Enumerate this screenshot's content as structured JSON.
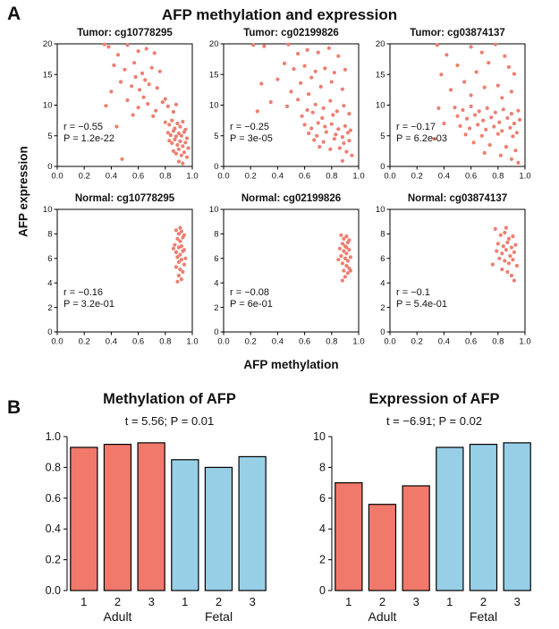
{
  "figure": {
    "panel_a_label": "A",
    "panel_b_label": "B",
    "title": "AFP methylation and expression",
    "y_axis_label": "AFP expression",
    "x_axis_label": "AFP methylation"
  },
  "colors": {
    "point": "#ee7e6f",
    "adult_bar": "#f0796c",
    "fetal_bar": "#97cfe6"
  },
  "chart_data": [
    {
      "id": "tumor_cg10778295",
      "type": "scatter",
      "title": "Tumor: cg10778295",
      "xlim": [
        0,
        1
      ],
      "ylim": [
        0,
        20
      ],
      "xticks": [
        0,
        0.2,
        0.4,
        0.6,
        0.8,
        1.0
      ],
      "yticks": [
        0,
        5,
        10,
        15,
        20
      ],
      "annotation": [
        "r = −0.55",
        "P = 1.2e-22"
      ],
      "points": [
        [
          0.38,
          19.5
        ],
        [
          0.45,
          18.2
        ],
        [
          0.52,
          19.8
        ],
        [
          0.6,
          18.8
        ],
        [
          0.66,
          19.2
        ],
        [
          0.72,
          18.5
        ],
        [
          0.42,
          16.5
        ],
        [
          0.5,
          15.8
        ],
        [
          0.57,
          16.9
        ],
        [
          0.63,
          15.2
        ],
        [
          0.7,
          16.1
        ],
        [
          0.76,
          15.5
        ],
        [
          0.47,
          13.8
        ],
        [
          0.55,
          13.1
        ],
        [
          0.61,
          12.5
        ],
        [
          0.68,
          13.4
        ],
        [
          0.74,
          12.8
        ],
        [
          0.4,
          12.2
        ],
        [
          0.58,
          14.6
        ],
        [
          0.65,
          14.1
        ],
        [
          0.52,
          10.8
        ],
        [
          0.6,
          9.6
        ],
        [
          0.67,
          10.2
        ],
        [
          0.73,
          9.1
        ],
        [
          0.78,
          10.5
        ],
        [
          0.82,
          9.8
        ],
        [
          0.86,
          8.9
        ],
        [
          0.56,
          8.4
        ],
        [
          0.64,
          11.3
        ],
        [
          0.71,
          8.2
        ],
        [
          0.8,
          11.0
        ],
        [
          0.88,
          10.1
        ],
        [
          0.8,
          7.2
        ],
        [
          0.83,
          6.8
        ],
        [
          0.85,
          7.5
        ],
        [
          0.87,
          6.2
        ],
        [
          0.89,
          7.0
        ],
        [
          0.91,
          6.5
        ],
        [
          0.93,
          7.3
        ],
        [
          0.95,
          6.0
        ],
        [
          0.82,
          5.5
        ],
        [
          0.84,
          5.1
        ],
        [
          0.86,
          5.8
        ],
        [
          0.88,
          4.9
        ],
        [
          0.9,
          5.4
        ],
        [
          0.92,
          5.0
        ],
        [
          0.94,
          5.6
        ],
        [
          0.96,
          4.6
        ],
        [
          0.83,
          4.2
        ],
        [
          0.85,
          3.8
        ],
        [
          0.87,
          4.4
        ],
        [
          0.89,
          3.5
        ],
        [
          0.91,
          4.1
        ],
        [
          0.93,
          3.3
        ],
        [
          0.95,
          3.9
        ],
        [
          0.97,
          3.0
        ],
        [
          0.86,
          2.5
        ],
        [
          0.88,
          2.1
        ],
        [
          0.9,
          2.8
        ],
        [
          0.92,
          1.8
        ],
        [
          0.94,
          2.3
        ],
        [
          0.96,
          1.5
        ],
        [
          0.9,
          0.8
        ],
        [
          0.93,
          0.5
        ],
        [
          0.44,
          6.5
        ],
        [
          0.48,
          1.2
        ],
        [
          0.36,
          9.9
        ],
        [
          0.35,
          19.9
        ]
      ]
    },
    {
      "id": "tumor_cg02199826",
      "type": "scatter",
      "title": "Tumor: cg02199826",
      "xlim": [
        0,
        1
      ],
      "ylim": [
        0,
        20
      ],
      "xticks": [
        0,
        0.2,
        0.4,
        0.6,
        0.8,
        1.0
      ],
      "yticks": [
        0,
        5,
        10,
        15,
        20
      ],
      "annotation": [
        "r = −0.25",
        "P = 3e-05"
      ],
      "points": [
        [
          0.3,
          19.6
        ],
        [
          0.48,
          19.9
        ],
        [
          0.55,
          18.4
        ],
        [
          0.62,
          19.0
        ],
        [
          0.7,
          18.6
        ],
        [
          0.78,
          19.3
        ],
        [
          0.85,
          18.0
        ],
        [
          0.45,
          16.8
        ],
        [
          0.52,
          15.9
        ],
        [
          0.6,
          16.4
        ],
        [
          0.68,
          15.5
        ],
        [
          0.75,
          16.0
        ],
        [
          0.82,
          15.3
        ],
        [
          0.9,
          15.8
        ],
        [
          0.4,
          14.2
        ],
        [
          0.57,
          13.6
        ],
        [
          0.65,
          14.5
        ],
        [
          0.72,
          13.0
        ],
        [
          0.8,
          13.8
        ],
        [
          0.88,
          12.6
        ],
        [
          0.5,
          12.2
        ],
        [
          0.63,
          11.8
        ],
        [
          0.35,
          10.5
        ],
        [
          0.47,
          9.8
        ],
        [
          0.55,
          10.9
        ],
        [
          0.62,
          9.2
        ],
        [
          0.68,
          10.1
        ],
        [
          0.74,
          9.5
        ],
        [
          0.79,
          10.7
        ],
        [
          0.84,
          9.0
        ],
        [
          0.89,
          9.9
        ],
        [
          0.93,
          8.6
        ],
        [
          0.58,
          8.2
        ],
        [
          0.66,
          8.8
        ],
        [
          0.73,
          7.9
        ],
        [
          0.81,
          8.4
        ],
        [
          0.6,
          6.8
        ],
        [
          0.65,
          6.2
        ],
        [
          0.7,
          7.1
        ],
        [
          0.75,
          6.5
        ],
        [
          0.8,
          6.9
        ],
        [
          0.85,
          6.1
        ],
        [
          0.9,
          6.6
        ],
        [
          0.94,
          5.9
        ],
        [
          0.63,
          5.4
        ],
        [
          0.69,
          5.0
        ],
        [
          0.76,
          5.6
        ],
        [
          0.83,
          5.2
        ],
        [
          0.88,
          4.8
        ],
        [
          0.92,
          5.5
        ],
        [
          0.67,
          4.3
        ],
        [
          0.74,
          4.0
        ],
        [
          0.82,
          4.5
        ],
        [
          0.89,
          3.8
        ],
        [
          0.93,
          4.2
        ],
        [
          0.71,
          3.2
        ],
        [
          0.79,
          2.8
        ],
        [
          0.86,
          3.0
        ],
        [
          0.91,
          2.4
        ],
        [
          0.95,
          1.8
        ],
        [
          0.88,
          0.9
        ],
        [
          0.25,
          9.0
        ],
        [
          0.28,
          13.5
        ],
        [
          0.22,
          19.8
        ]
      ]
    },
    {
      "id": "tumor_cg03874137",
      "type": "scatter",
      "title": "Tumor: cg03874137",
      "xlim": [
        0,
        1
      ],
      "ylim": [
        0,
        20
      ],
      "xticks": [
        0,
        0.2,
        0.4,
        0.6,
        0.8,
        1.0
      ],
      "yticks": [
        0,
        5,
        10,
        15,
        20
      ],
      "annotation": [
        "r = −0.17",
        "P = 6.2e-03"
      ],
      "points": [
        [
          0.35,
          19.8
        ],
        [
          0.6,
          19.5
        ],
        [
          0.78,
          19.9
        ],
        [
          0.42,
          18.2
        ],
        [
          0.68,
          18.6
        ],
        [
          0.85,
          18.0
        ],
        [
          0.5,
          16.5
        ],
        [
          0.73,
          16.9
        ],
        [
          0.88,
          16.2
        ],
        [
          0.38,
          15.0
        ],
        [
          0.64,
          15.4
        ],
        [
          0.92,
          15.1
        ],
        [
          0.55,
          13.8
        ],
        [
          0.8,
          13.2
        ],
        [
          0.45,
          12.5
        ],
        [
          0.7,
          12.9
        ],
        [
          0.9,
          12.2
        ],
        [
          0.6,
          11.6
        ],
        [
          0.83,
          11.2
        ],
        [
          0.48,
          9.6
        ],
        [
          0.54,
          9.2
        ],
        [
          0.6,
          9.8
        ],
        [
          0.66,
          9.0
        ],
        [
          0.72,
          9.5
        ],
        [
          0.78,
          8.8
        ],
        [
          0.84,
          9.3
        ],
        [
          0.9,
          8.6
        ],
        [
          0.95,
          9.1
        ],
        [
          0.5,
          8.2
        ],
        [
          0.57,
          7.8
        ],
        [
          0.63,
          8.4
        ],
        [
          0.69,
          7.5
        ],
        [
          0.75,
          8.0
        ],
        [
          0.81,
          7.2
        ],
        [
          0.87,
          7.9
        ],
        [
          0.92,
          7.0
        ],
        [
          0.96,
          7.6
        ],
        [
          0.52,
          6.6
        ],
        [
          0.59,
          6.2
        ],
        [
          0.65,
          6.8
        ],
        [
          0.71,
          6.0
        ],
        [
          0.77,
          6.5
        ],
        [
          0.83,
          5.8
        ],
        [
          0.89,
          6.3
        ],
        [
          0.94,
          5.5
        ],
        [
          0.56,
          5.2
        ],
        [
          0.68,
          5.0
        ],
        [
          0.8,
          5.3
        ],
        [
          0.91,
          4.9
        ],
        [
          0.62,
          3.9
        ],
        [
          0.74,
          3.5
        ],
        [
          0.86,
          3.2
        ],
        [
          0.93,
          2.6
        ],
        [
          0.7,
          2.2
        ],
        [
          0.82,
          1.8
        ],
        [
          0.9,
          1.2
        ],
        [
          0.95,
          0.6
        ],
        [
          0.4,
          7.0
        ],
        [
          0.36,
          9.5
        ],
        [
          0.33,
          4.5
        ]
      ]
    },
    {
      "id": "normal_cg10778295",
      "type": "scatter",
      "title": "Normal: cg10778295",
      "xlim": [
        0,
        1
      ],
      "ylim": [
        0,
        10
      ],
      "xticks": [
        0,
        0.2,
        0.4,
        0.6,
        0.8,
        1.0
      ],
      "yticks": [
        0,
        2,
        4,
        6,
        8,
        10
      ],
      "annotation": [
        "r = −0.16",
        "P = 3.2e-01"
      ],
      "points": [
        [
          0.88,
          8.3
        ],
        [
          0.9,
          8.0
        ],
        [
          0.92,
          8.2
        ],
        [
          0.89,
          7.6
        ],
        [
          0.91,
          7.4
        ],
        [
          0.93,
          7.7
        ],
        [
          0.87,
          7.1
        ],
        [
          0.9,
          6.9
        ],
        [
          0.92,
          7.0
        ],
        [
          0.94,
          6.7
        ],
        [
          0.88,
          6.5
        ],
        [
          0.91,
          6.3
        ],
        [
          0.93,
          6.6
        ],
        [
          0.89,
          6.1
        ],
        [
          0.92,
          5.9
        ],
        [
          0.9,
          5.7
        ],
        [
          0.94,
          5.5
        ],
        [
          0.88,
          5.3
        ],
        [
          0.91,
          5.1
        ],
        [
          0.93,
          4.9
        ],
        [
          0.9,
          4.6
        ],
        [
          0.92,
          4.3
        ],
        [
          0.89,
          4.1
        ],
        [
          0.95,
          6.0
        ],
        [
          0.86,
          6.8
        ],
        [
          0.94,
          7.9
        ],
        [
          0.91,
          8.5
        ]
      ]
    },
    {
      "id": "normal_cg02199826",
      "type": "scatter",
      "title": "Normal: cg02199826",
      "xlim": [
        0,
        1
      ],
      "ylim": [
        0,
        10
      ],
      "xticks": [
        0,
        0.2,
        0.4,
        0.6,
        0.8,
        1.0
      ],
      "yticks": [
        0,
        2,
        4,
        6,
        8,
        10
      ],
      "annotation": [
        "r = −0.08",
        "P = 6e-01"
      ],
      "points": [
        [
          0.87,
          7.9
        ],
        [
          0.89,
          7.6
        ],
        [
          0.91,
          7.8
        ],
        [
          0.88,
          7.2
        ],
        [
          0.9,
          7.0
        ],
        [
          0.92,
          7.3
        ],
        [
          0.86,
          6.8
        ],
        [
          0.89,
          6.6
        ],
        [
          0.91,
          6.4
        ],
        [
          0.93,
          6.7
        ],
        [
          0.87,
          6.2
        ],
        [
          0.9,
          6.0
        ],
        [
          0.92,
          5.8
        ],
        [
          0.88,
          5.6
        ],
        [
          0.91,
          5.4
        ],
        [
          0.93,
          5.2
        ],
        [
          0.89,
          5.0
        ],
        [
          0.92,
          4.8
        ],
        [
          0.9,
          4.5
        ],
        [
          0.94,
          6.1
        ],
        [
          0.85,
          5.9
        ],
        [
          0.93,
          7.5
        ],
        [
          0.88,
          4.2
        ],
        [
          0.91,
          6.9
        ],
        [
          0.94,
          5.0
        ]
      ]
    },
    {
      "id": "normal_cg03874137",
      "type": "scatter",
      "title": "Normal: cg03874137",
      "xlim": [
        0,
        1
      ],
      "ylim": [
        0,
        10
      ],
      "xticks": [
        0,
        0.2,
        0.4,
        0.6,
        0.8,
        1.0
      ],
      "yticks": [
        0,
        2,
        4,
        6,
        8,
        10
      ],
      "annotation": [
        "r = −0.1",
        "P = 5.4e-01"
      ],
      "points": [
        [
          0.78,
          8.4
        ],
        [
          0.82,
          7.9
        ],
        [
          0.85,
          8.1
        ],
        [
          0.88,
          7.6
        ],
        [
          0.91,
          7.8
        ],
        [
          0.8,
          7.2
        ],
        [
          0.84,
          7.0
        ],
        [
          0.87,
          7.3
        ],
        [
          0.9,
          6.9
        ],
        [
          0.93,
          7.1
        ],
        [
          0.79,
          6.6
        ],
        [
          0.83,
          6.4
        ],
        [
          0.86,
          6.7
        ],
        [
          0.89,
          6.2
        ],
        [
          0.92,
          6.5
        ],
        [
          0.81,
          6.0
        ],
        [
          0.85,
          5.8
        ],
        [
          0.88,
          5.6
        ],
        [
          0.91,
          5.9
        ],
        [
          0.94,
          5.4
        ],
        [
          0.83,
          5.1
        ],
        [
          0.87,
          4.9
        ],
        [
          0.9,
          4.6
        ],
        [
          0.76,
          5.5
        ],
        [
          0.92,
          4.2
        ],
        [
          0.86,
          8.5
        ]
      ]
    },
    {
      "id": "methylation_bar",
      "type": "bar",
      "title": "Methylation of AFP",
      "subtitle": "t = 5.56; P = 0.01",
      "categories": [
        "1",
        "2",
        "3",
        "1",
        "2",
        "3"
      ],
      "groups": [
        {
          "label": "Adult",
          "span": [
            0,
            2
          ]
        },
        {
          "label": "Fetal",
          "span": [
            3,
            5
          ]
        }
      ],
      "values": [
        0.93,
        0.95,
        0.96,
        0.85,
        0.8,
        0.87
      ],
      "bar_colors": [
        "adult",
        "adult",
        "adult",
        "fetal",
        "fetal",
        "fetal"
      ],
      "ylim": [
        0,
        1
      ],
      "yticks": [
        0,
        0.2,
        0.4,
        0.6,
        0.8,
        1.0
      ],
      "ytick_labels": [
        "0.0",
        "0.2",
        "0.4",
        "0.6",
        "0.8",
        "1.0"
      ]
    },
    {
      "id": "expression_bar",
      "type": "bar",
      "title": "Expression of AFP",
      "subtitle": "t = −6.91; P = 0.02",
      "categories": [
        "1",
        "2",
        "3",
        "1",
        "2",
        "3"
      ],
      "groups": [
        {
          "label": "Adult",
          "span": [
            0,
            2
          ]
        },
        {
          "label": "Fetal",
          "span": [
            3,
            5
          ]
        }
      ],
      "values": [
        7.0,
        5.6,
        6.8,
        9.3,
        9.5,
        9.6
      ],
      "bar_colors": [
        "adult",
        "adult",
        "adult",
        "fetal",
        "fetal",
        "fetal"
      ],
      "ylim": [
        0,
        10
      ],
      "yticks": [
        0,
        2,
        4,
        6,
        8,
        10
      ],
      "ytick_labels": [
        "0",
        "2",
        "4",
        "6",
        "8",
        "10"
      ]
    }
  ]
}
